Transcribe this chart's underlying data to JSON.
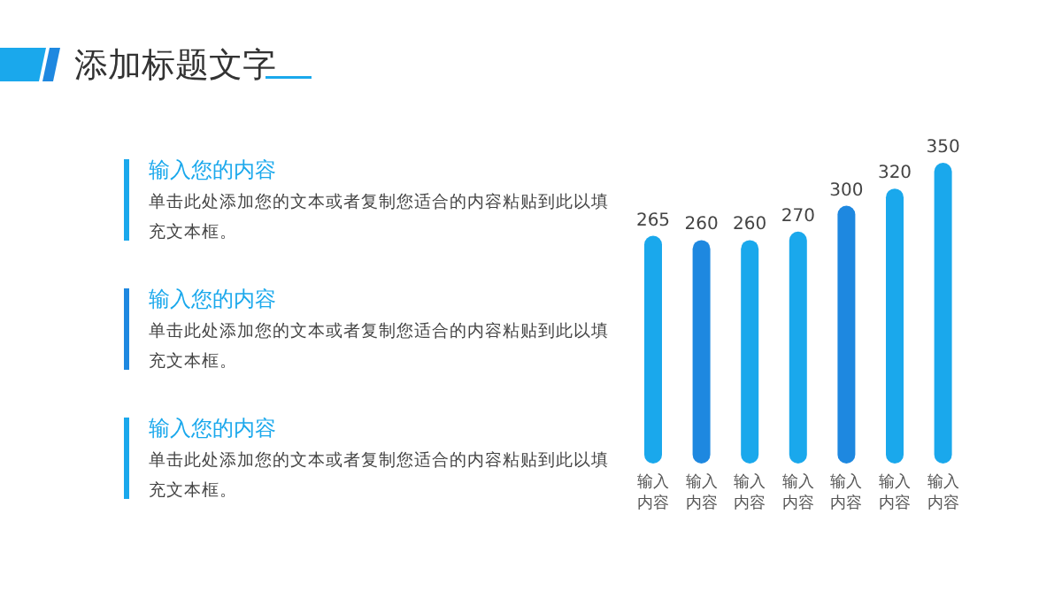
{
  "chart_data": {
    "type": "bar",
    "title": "添加标题文字",
    "categories": [
      "输入内容",
      "输入内容",
      "输入内容",
      "输入内容",
      "输入内容",
      "输入内容",
      "输入内容"
    ],
    "values": [
      265,
      260,
      260,
      270,
      300,
      320,
      350
    ],
    "colors": [
      "#1aa8ec",
      "#1e88e0",
      "#1aa8ec",
      "#1aa8ec",
      "#1e88e0",
      "#1aa8ec",
      "#1aa8ec"
    ],
    "data_labels": true,
    "annotations": [
      "输入您的内容",
      "单击此处添加您的文本或者复制您适合的内容粘贴到此以填充文本框。",
      "输入您的内容",
      "单击此处添加您的文本或者复制您适合的内容粘贴到此以填充文本框。",
      "输入您的内容",
      "单击此处添加您的文本或者复制您适合的内容粘贴到此以填充文本框。"
    ]
  }
}
